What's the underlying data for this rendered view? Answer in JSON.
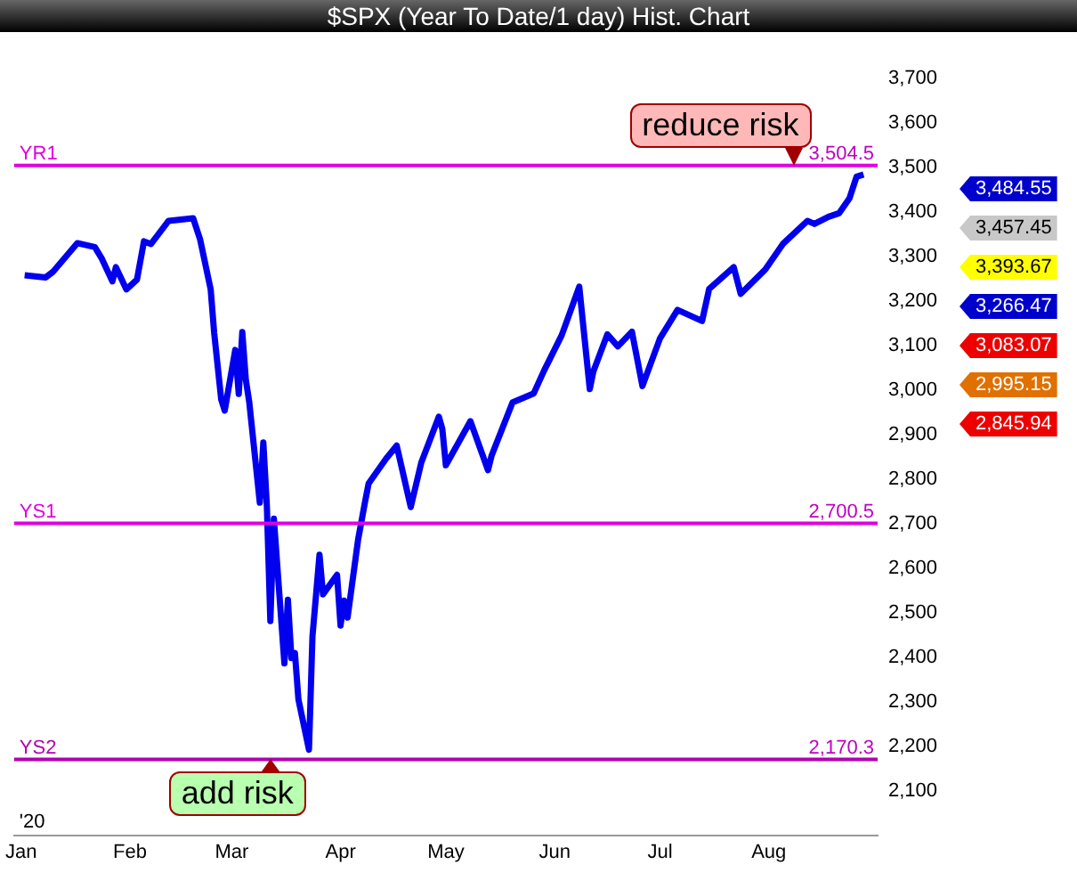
{
  "chart_data": {
    "type": "line",
    "title": "$SPX (Year To Date/1 day) Hist. Chart",
    "x": [
      "2020-01-02",
      "2020-01-08",
      "2020-01-10",
      "2020-01-17",
      "2020-01-22",
      "2020-01-24",
      "2020-01-27",
      "2020-01-28",
      "2020-01-31",
      "2020-02-03",
      "2020-02-05",
      "2020-02-07",
      "2020-02-12",
      "2020-02-19",
      "2020-02-21",
      "2020-02-24",
      "2020-02-25",
      "2020-02-27",
      "2020-02-28",
      "2020-03-02",
      "2020-03-03",
      "2020-03-04",
      "2020-03-05",
      "2020-03-06",
      "2020-03-09",
      "2020-03-10",
      "2020-03-11",
      "2020-03-12",
      "2020-03-13",
      "2020-03-16",
      "2020-03-17",
      "2020-03-18",
      "2020-03-19",
      "2020-03-20",
      "2020-03-23",
      "2020-03-24",
      "2020-03-26",
      "2020-03-27",
      "2020-03-31",
      "2020-04-01",
      "2020-04-02",
      "2020-04-03",
      "2020-04-06",
      "2020-04-08",
      "2020-04-09",
      "2020-04-14",
      "2020-04-17",
      "2020-04-21",
      "2020-04-24",
      "2020-04-29",
      "2020-04-30",
      "2020-05-01",
      "2020-05-08",
      "2020-05-13",
      "2020-05-14",
      "2020-05-20",
      "2020-05-26",
      "2020-05-29",
      "2020-06-03",
      "2020-06-08",
      "2020-06-11",
      "2020-06-12",
      "2020-06-16",
      "2020-06-19",
      "2020-06-23",
      "2020-06-26",
      "2020-07-01",
      "2020-07-06",
      "2020-07-13",
      "2020-07-15",
      "2020-07-22",
      "2020-07-24",
      "2020-07-31",
      "2020-08-05",
      "2020-08-12",
      "2020-08-14",
      "2020-08-18",
      "2020-08-21",
      "2020-08-24",
      "2020-08-26",
      "2020-08-28"
    ],
    "series": [
      {
        "color": "#0000ee",
        "values": [
          3258,
          3253,
          3265,
          3330,
          3321,
          3295,
          3244,
          3276,
          3226,
          3248,
          3334,
          3328,
          3380,
          3386,
          3338,
          3226,
          3128,
          2979,
          2954,
          3090,
          2991,
          3130,
          3024,
          2972,
          2747,
          2882,
          2741,
          2481,
          2711,
          2386,
          2529,
          2398,
          2409,
          2305,
          2192,
          2447,
          2630,
          2541,
          2585,
          2471,
          2527,
          2489,
          2664,
          2750,
          2790,
          2846,
          2875,
          2737,
          2837,
          2940,
          2912,
          2831,
          2930,
          2820,
          2852,
          2972,
          2992,
          3044,
          3123,
          3232,
          3002,
          3041,
          3125,
          3098,
          3131,
          3009,
          3116,
          3180,
          3155,
          3227,
          3276,
          3216,
          3271,
          3328,
          3380,
          3373,
          3389,
          3397,
          3431,
          3479,
          3484
        ]
      }
    ],
    "xlim": [
      "2019-12-30",
      "2020-09-01"
    ],
    "xticks": [
      {
        "value": "2020-01-01",
        "label": "Jan"
      },
      {
        "value": "2020-02-01",
        "label": "Feb"
      },
      {
        "value": "2020-03-01",
        "label": "Mar"
      },
      {
        "value": "2020-04-01",
        "label": "Apr"
      },
      {
        "value": "2020-05-01",
        "label": "May"
      },
      {
        "value": "2020-06-01",
        "label": "Jun"
      },
      {
        "value": "2020-07-01",
        "label": "Jul"
      },
      {
        "value": "2020-08-01",
        "label": "Aug"
      }
    ],
    "ylim": [
      2000,
      3700
    ],
    "yticks": [
      {
        "value": 2100,
        "label": "2,100"
      },
      {
        "value": 2200,
        "label": "2,200"
      },
      {
        "value": 2300,
        "label": "2,300"
      },
      {
        "value": 2400,
        "label": "2,400"
      },
      {
        "value": 2500,
        "label": "2,500"
      },
      {
        "value": 2600,
        "label": "2,600"
      },
      {
        "value": 2700,
        "label": "2,700"
      },
      {
        "value": 2800,
        "label": "2,800"
      },
      {
        "value": 2900,
        "label": "2,900"
      },
      {
        "value": 3000,
        "label": "3,000"
      },
      {
        "value": 3100,
        "label": "3,100"
      },
      {
        "value": 3200,
        "label": "3,200"
      },
      {
        "value": 3300,
        "label": "3,300"
      },
      {
        "value": 3400,
        "label": "3,400"
      },
      {
        "value": 3500,
        "label": "3,500"
      },
      {
        "value": 3600,
        "label": "3,600"
      },
      {
        "value": 3700,
        "label": "3,700"
      }
    ],
    "ref_lines": [
      {
        "axis": "y",
        "value": 3504.5,
        "label": "YR1",
        "color": "#e000e0"
      },
      {
        "axis": "y",
        "value": 2700.5,
        "label": "YS1",
        "color": "#e000e0"
      },
      {
        "axis": "y",
        "value": 2170.3,
        "label": "YS2",
        "color": "#b000b0"
      }
    ],
    "annotations": [
      {
        "text": "reduce risk",
        "x": "2020-08-08",
        "y": 3504.5
      },
      {
        "text": "add risk",
        "x": "2020-03-12",
        "y": 2170.3
      },
      {
        "text": "3,504.5",
        "x": "2020-09-01",
        "y": 3504.5
      },
      {
        "text": "2,700.5",
        "x": "2020-09-01",
        "y": 2700.5
      },
      {
        "text": "2,170.3",
        "x": "2020-09-01",
        "y": 2170.3
      },
      "'20",
      "3,484.55",
      "3,457.45",
      "3,393.67",
      "3,266.47",
      "3,083.07",
      "2,995.15",
      "2,845.94"
    ],
    "grid": false,
    "legend": false,
    "marker": "none",
    "line_style": "solid"
  }
}
